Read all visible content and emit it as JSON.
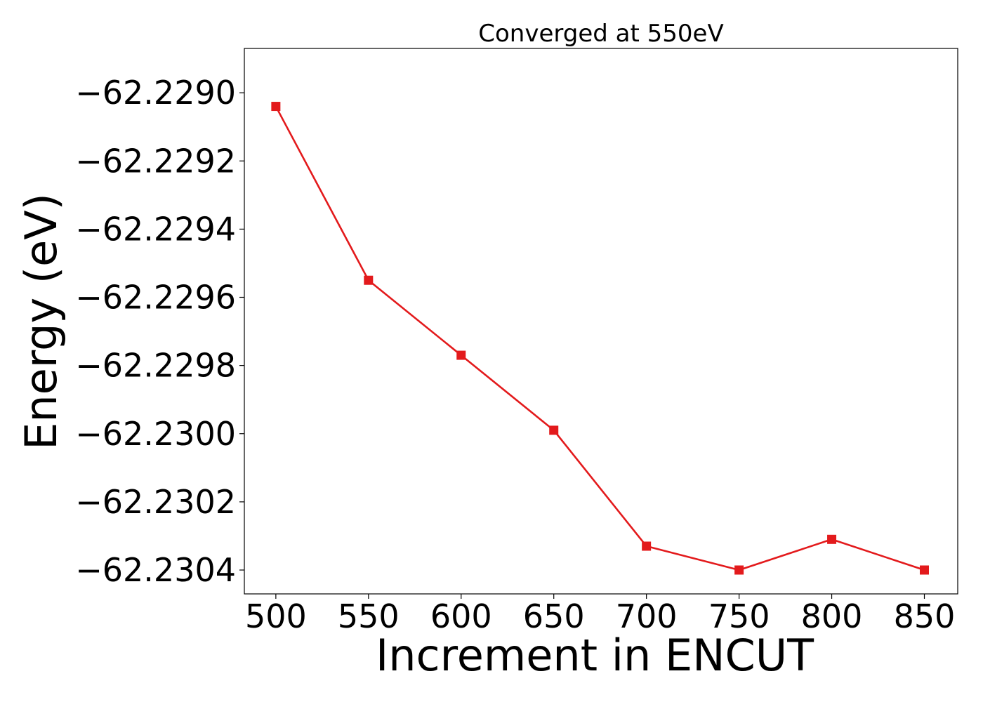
{
  "chart_data": {
    "type": "line",
    "title": "Converged at 550eV",
    "xlabel": "Increment in ENCUT",
    "ylabel": "Energy (eV)",
    "x": [
      500,
      550,
      600,
      650,
      700,
      750,
      800,
      850
    ],
    "series": [
      {
        "values": [
          -62.22904,
          -62.22955,
          -62.22977,
          -62.22999,
          -62.23033,
          -62.2304,
          -62.23031,
          -62.2304
        ],
        "color": "#e31a1c",
        "marker": "square"
      }
    ],
    "xlim": [
      483,
      868
    ],
    "ylim": [
      -62.23047,
      -62.22887
    ],
    "xticks": [
      500,
      550,
      600,
      650,
      700,
      750,
      800,
      850
    ],
    "xtick_labels": [
      "500",
      "550",
      "600",
      "650",
      "700",
      "750",
      "800",
      "850"
    ],
    "yticks": [
      -62.229,
      -62.2292,
      -62.2294,
      -62.2296,
      -62.2298,
      -62.23,
      -62.2302,
      -62.2304
    ],
    "ytick_labels": [
      "−62.2290",
      "−62.2292",
      "−62.2294",
      "−62.2296",
      "−62.2298",
      "−62.2300",
      "−62.2302",
      "−62.2304"
    ],
    "grid": false,
    "legend": "none"
  }
}
